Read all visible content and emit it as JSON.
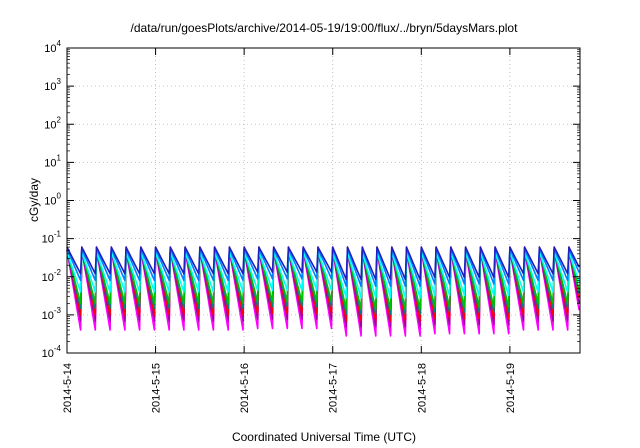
{
  "chart_data": {
    "type": "line",
    "title": "/data/run/goesPlots/archive/2014-05-19/19:00/flux/../bryn/5daysMars.plot",
    "xlabel": "Coordinated Universal Time (UTC)",
    "ylabel": "cGy/day",
    "y_scale": "log",
    "ylim": [
      0.0001,
      10000
    ],
    "xlim": [
      "2014-05-14 00:00",
      "2014-05-19 19:00"
    ],
    "grid": true,
    "y_ticks": [
      {
        "base": "10",
        "exp": "4"
      },
      {
        "base": "10",
        "exp": "3"
      },
      {
        "base": "10",
        "exp": "2"
      },
      {
        "base": "10",
        "exp": "1"
      },
      {
        "base": "10",
        "exp": "0"
      },
      {
        "base": "10",
        "exp": "-1"
      },
      {
        "base": "10",
        "exp": "-2"
      },
      {
        "base": "10",
        "exp": "-3"
      },
      {
        "base": "10",
        "exp": "-4"
      }
    ],
    "x_ticks": [
      "2014-5-14",
      "2014-5-15",
      "2014-5-16",
      "2014-5-17",
      "2014-5-18",
      "2014-5-19"
    ],
    "pattern": {
      "description_of_values": "sawtooth series repeating about 6 cycles per day",
      "cycles_per_day": 6,
      "peak_value": 0.06,
      "notes": "all series spike to ~0.06 and decay; lower series decay to ~0.0004"
    },
    "series": [
      {
        "color": "#ff00ff",
        "peak": 0.05,
        "trough": 0.0004
      },
      {
        "color": "#a000a0",
        "peak": 0.05,
        "trough": 0.0007
      },
      {
        "color": "#ff0000",
        "peak": 0.06,
        "trough": 0.001
      },
      {
        "color": "#008080",
        "peak": 0.05,
        "trough": 0.0015
      },
      {
        "color": "#00c000",
        "peak": 0.05,
        "trough": 0.002
      },
      {
        "color": "#00ffff",
        "peak": 0.045,
        "trough": 0.004
      },
      {
        "color": "#0080ff",
        "peak": 0.055,
        "trough": 0.008
      },
      {
        "color": "#2020c0",
        "peak": 0.06,
        "trough": 0.012
      }
    ]
  }
}
